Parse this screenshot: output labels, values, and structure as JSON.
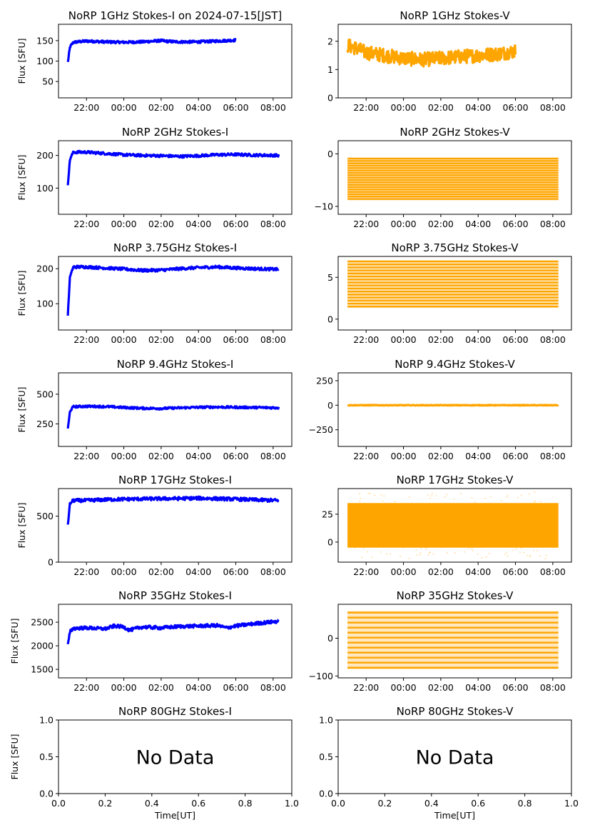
{
  "figure_title": "NoRP 1GHz Stokes-I on 2024-07-15[JST]",
  "colors": {
    "stokes_i": "#0000ff",
    "stokes_v": "#ffa500"
  },
  "chart_data": [
    {
      "type": "scatter",
      "title": "NoRP 1GHz Stokes-I on 2024-07-15[JST]",
      "ylabel": "Flux [SFU]",
      "xlabel": "",
      "xlim": [
        20.5,
        33.0
      ],
      "ylim": [
        10,
        190
      ],
      "xticks": [
        22,
        24,
        26,
        28,
        30,
        32
      ],
      "xtick_labels": [
        "22:00",
        "00:00",
        "02:00",
        "04:00",
        "06:00",
        "08:00"
      ],
      "yticks": [
        50,
        100,
        150
      ],
      "ytick_labels": [
        "50",
        "100",
        "150"
      ],
      "series": [
        {
          "name": "Stokes-I",
          "color": "#0000ff",
          "data_end": 30.0,
          "noise": 3,
          "points": [
            [
              21.0,
              97
            ],
            [
              21.12,
              135
            ],
            [
              21.3,
              146
            ],
            [
              22,
              149
            ],
            [
              23,
              147
            ],
            [
              24,
              146
            ],
            [
              25,
              147
            ],
            [
              26,
              150
            ],
            [
              26.4,
              148
            ],
            [
              27,
              147
            ],
            [
              28,
              147
            ],
            [
              29,
              149
            ],
            [
              30,
              151
            ]
          ]
        }
      ],
      "annotations": []
    },
    {
      "type": "scatter",
      "title": "NoRP 1GHz Stokes-V",
      "ylabel": "",
      "xlabel": "",
      "xlim": [
        20.5,
        33.0
      ],
      "ylim": [
        0,
        2.6
      ],
      "xticks": [
        22,
        24,
        26,
        28,
        30,
        32
      ],
      "xtick_labels": [
        "22:00",
        "00:00",
        "02:00",
        "04:00",
        "06:00",
        "08:00"
      ],
      "yticks": [
        0,
        1,
        2
      ],
      "ytick_labels": [
        "0",
        "1",
        "2"
      ],
      "series": [
        {
          "name": "Stokes-V",
          "color": "#ffa500",
          "data_end": 30.0,
          "noise": 0.25,
          "points": [
            [
              21.0,
              1.85
            ],
            [
              21.5,
              1.75
            ],
            [
              22,
              1.6
            ],
            [
              23,
              1.5
            ],
            [
              24,
              1.4
            ],
            [
              25,
              1.35
            ],
            [
              26,
              1.4
            ],
            [
              27,
              1.45
            ],
            [
              28,
              1.5
            ],
            [
              29,
              1.55
            ],
            [
              30,
              1.65
            ]
          ]
        }
      ],
      "annotations": []
    },
    {
      "type": "scatter",
      "title": "NoRP 2GHz Stokes-I",
      "ylabel": "Flux [SFU]",
      "xlabel": "",
      "xlim": [
        20.5,
        33.0
      ],
      "ylim": [
        20,
        245
      ],
      "xticks": [
        22,
        24,
        26,
        28,
        30,
        32
      ],
      "xtick_labels": [
        "22:00",
        "00:00",
        "02:00",
        "04:00",
        "06:00",
        "08:00"
      ],
      "yticks": [
        100,
        200
      ],
      "ytick_labels": [
        "100",
        "200"
      ],
      "series": [
        {
          "name": "Stokes-I",
          "color": "#0000ff",
          "data_end": 32.3,
          "noise": 4,
          "points": [
            [
              21.0,
              112
            ],
            [
              21.12,
              190
            ],
            [
              21.3,
              210
            ],
            [
              22,
              210
            ],
            [
              23,
              206
            ],
            [
              24,
              202
            ],
            [
              25,
              200
            ],
            [
              26,
              199
            ],
            [
              27,
              197
            ],
            [
              28,
              199
            ],
            [
              29,
              202
            ],
            [
              30,
              203
            ],
            [
              31,
              201
            ],
            [
              32.3,
              200
            ]
          ]
        }
      ],
      "annotations": []
    },
    {
      "type": "scatter",
      "title": "NoRP 2GHz Stokes-V",
      "ylabel": "",
      "xlabel": "",
      "xlim": [
        20.5,
        33.0
      ],
      "ylim": [
        -11.5,
        2.5
      ],
      "xticks": [
        22,
        24,
        26,
        28,
        30,
        32
      ],
      "xtick_labels": [
        "22:00",
        "00:00",
        "02:00",
        "04:00",
        "06:00",
        "08:00"
      ],
      "yticks": [
        0,
        -10
      ],
      "ytick_labels": [
        "0",
        "−10"
      ],
      "series": [
        {
          "name": "Stokes-V",
          "color": "#ffa500",
          "data_end": 32.3,
          "bands": [
            -8.6,
            -0.9
          ],
          "band_count": 18,
          "points": []
        }
      ],
      "annotations": []
    },
    {
      "type": "scatter",
      "title": "NoRP 3.75GHz Stokes-I",
      "ylabel": "Flux [SFU]",
      "xlabel": "",
      "xlim": [
        20.5,
        33.0
      ],
      "ylim": [
        25,
        235
      ],
      "xticks": [
        22,
        24,
        26,
        28,
        30,
        32
      ],
      "xtick_labels": [
        "22:00",
        "00:00",
        "02:00",
        "04:00",
        "06:00",
        "08:00"
      ],
      "yticks": [
        100,
        200
      ],
      "ytick_labels": [
        "100",
        "200"
      ],
      "series": [
        {
          "name": "Stokes-I",
          "color": "#0000ff",
          "data_end": 32.3,
          "noise": 4,
          "points": [
            [
              21.0,
              68
            ],
            [
              21.12,
              180
            ],
            [
              21.3,
              205
            ],
            [
              22,
              205
            ],
            [
              23,
              202
            ],
            [
              24,
              199
            ],
            [
              25,
              195
            ],
            [
              26,
              196
            ],
            [
              27,
              200
            ],
            [
              28,
              203
            ],
            [
              29,
              205
            ],
            [
              30,
              202
            ],
            [
              31,
              200
            ],
            [
              32.3,
              198
            ]
          ]
        }
      ],
      "annotations": []
    },
    {
      "type": "scatter",
      "title": "NoRP 3.75GHz Stokes-V",
      "ylabel": "",
      "xlabel": "",
      "xlim": [
        20.5,
        33.0
      ],
      "ylim": [
        -1.3,
        7.5
      ],
      "xticks": [
        22,
        24,
        26,
        28,
        30,
        32
      ],
      "xtick_labels": [
        "22:00",
        "00:00",
        "02:00",
        "04:00",
        "06:00",
        "08:00"
      ],
      "yticks": [
        0,
        5
      ],
      "ytick_labels": [
        "0",
        "5"
      ],
      "series": [
        {
          "name": "Stokes-V",
          "color": "#ffa500",
          "data_end": 32.3,
          "bands": [
            1.5,
            6.9
          ],
          "band_count": 16,
          "points": []
        }
      ],
      "annotations": []
    },
    {
      "type": "scatter",
      "title": "NoRP 9.4GHz Stokes-I",
      "ylabel": "Flux [SFU]",
      "xlabel": "",
      "xlim": [
        20.5,
        33.0
      ],
      "ylim": [
        60,
        680
      ],
      "xticks": [
        22,
        24,
        26,
        28,
        30,
        32
      ],
      "xtick_labels": [
        "22:00",
        "00:00",
        "02:00",
        "04:00",
        "06:00",
        "08:00"
      ],
      "yticks": [
        250,
        500
      ],
      "ytick_labels": [
        "250",
        "500"
      ],
      "series": [
        {
          "name": "Stokes-I",
          "color": "#0000ff",
          "data_end": 32.3,
          "noise": 9,
          "points": [
            [
              21.0,
              205
            ],
            [
              21.12,
              360
            ],
            [
              21.3,
              395
            ],
            [
              22,
              398
            ],
            [
              23,
              396
            ],
            [
              24,
              388
            ],
            [
              25,
              382
            ],
            [
              26,
              380
            ],
            [
              27,
              385
            ],
            [
              28,
              390
            ],
            [
              29,
              392
            ],
            [
              30,
              390
            ],
            [
              31,
              388
            ],
            [
              32.3,
              386
            ]
          ]
        }
      ],
      "annotations": []
    },
    {
      "type": "scatter",
      "title": "NoRP 9.4GHz Stokes-V",
      "ylabel": "",
      "xlabel": "",
      "xlim": [
        20.5,
        33.0
      ],
      "ylim": [
        -420,
        330
      ],
      "xticks": [
        22,
        24,
        26,
        28,
        30,
        32
      ],
      "xtick_labels": [
        "22:00",
        "00:00",
        "02:00",
        "04:00",
        "06:00",
        "08:00"
      ],
      "yticks": [
        250,
        0,
        -250
      ],
      "ytick_labels": [
        "250",
        "0",
        "−250"
      ],
      "series": [
        {
          "name": "Stokes-V",
          "color": "#ffa500",
          "data_end": 32.3,
          "noise": 3,
          "points": [
            [
              21.0,
              0
            ],
            [
              32.3,
              0
            ]
          ]
        }
      ],
      "annotations": []
    },
    {
      "type": "scatter",
      "title": "NoRP 17GHz Stokes-I",
      "ylabel": "Flux [SFU]",
      "xlabel": "",
      "xlim": [
        20.5,
        33.0
      ],
      "ylim": [
        0,
        800
      ],
      "xticks": [
        22,
        24,
        26,
        28,
        30,
        32
      ],
      "xtick_labels": [
        "22:00",
        "00:00",
        "02:00",
        "04:00",
        "06:00",
        "08:00"
      ],
      "yticks": [
        0,
        500
      ],
      "ytick_labels": [
        "0",
        "500"
      ],
      "series": [
        {
          "name": "Stokes-I",
          "color": "#0000ff",
          "data_end": 32.3,
          "noise": 18,
          "points": [
            [
              21.0,
              410
            ],
            [
              21.12,
              640
            ],
            [
              21.3,
              670
            ],
            [
              22,
              670
            ],
            [
              23,
              680
            ],
            [
              24,
              685
            ],
            [
              25,
              688
            ],
            [
              26,
              690
            ],
            [
              27,
              692
            ],
            [
              28,
              695
            ],
            [
              29,
              690
            ],
            [
              30,
              685
            ],
            [
              31,
              678
            ],
            [
              32.3,
              670
            ]
          ]
        }
      ],
      "annotations": []
    },
    {
      "type": "scatter",
      "title": "NoRP 17GHz Stokes-V",
      "ylabel": "",
      "xlabel": "",
      "xlim": [
        20.5,
        33.0
      ],
      "ylim": [
        -18,
        48
      ],
      "xticks": [
        22,
        24,
        26,
        28,
        30,
        32
      ],
      "xtick_labels": [
        "22:00",
        "00:00",
        "02:00",
        "04:00",
        "06:00",
        "08:00"
      ],
      "yticks": [
        0,
        25
      ],
      "ytick_labels": [
        "0",
        "25"
      ],
      "series": [
        {
          "name": "Stokes-V",
          "color": "#ffa500",
          "data_end": 32.3,
          "bands": [
            -5,
            35
          ],
          "band_count": 0,
          "points": []
        }
      ],
      "annotations": []
    },
    {
      "type": "scatter",
      "title": "NoRP 35GHz Stokes-I",
      "ylabel": "Flux [SFU]",
      "xlabel": "",
      "xlim": [
        20.5,
        33.0
      ],
      "ylim": [
        1320,
        2880
      ],
      "xticks": [
        22,
        24,
        26,
        28,
        30,
        32
      ],
      "xtick_labels": [
        "22:00",
        "00:00",
        "02:00",
        "04:00",
        "06:00",
        "08:00"
      ],
      "yticks": [
        1500,
        2000,
        2500
      ],
      "ytick_labels": [
        "1500",
        "2000",
        "2500"
      ],
      "series": [
        {
          "name": "Stokes-I",
          "color": "#0000ff",
          "data_end": 32.3,
          "noise": 35,
          "points": [
            [
              21.0,
              2010
            ],
            [
              21.12,
              2300
            ],
            [
              21.3,
              2370
            ],
            [
              22,
              2380
            ],
            [
              23,
              2360
            ],
            [
              23.5,
              2420
            ],
            [
              24,
              2400
            ],
            [
              24.3,
              2330
            ],
            [
              25,
              2400
            ],
            [
              26,
              2380
            ],
            [
              27,
              2410
            ],
            [
              28,
              2420
            ],
            [
              29,
              2430
            ],
            [
              29.5,
              2380
            ],
            [
              30,
              2420
            ],
            [
              31,
              2470
            ],
            [
              32.3,
              2520
            ]
          ]
        }
      ],
      "annotations": []
    },
    {
      "type": "scatter",
      "title": "NoRP 35GHz Stokes-V",
      "ylabel": "",
      "xlabel": "",
      "xlim": [
        20.5,
        33.0
      ],
      "ylim": [
        -105,
        90
      ],
      "xticks": [
        22,
        24,
        26,
        28,
        30,
        32
      ],
      "xtick_labels": [
        "22:00",
        "00:00",
        "02:00",
        "04:00",
        "06:00",
        "08:00"
      ],
      "yticks": [
        0,
        -100
      ],
      "ytick_labels": [
        "0",
        "−100"
      ],
      "series": [
        {
          "name": "Stokes-V",
          "color": "#ffa500",
          "data_end": 32.3,
          "bands": [
            -78,
            68
          ],
          "band_count": 12,
          "points": []
        }
      ],
      "annotations": []
    },
    {
      "type": "scatter",
      "title": "NoRP 80GHz Stokes-I",
      "ylabel": "Flux [SFU]",
      "xlabel": "Time[UT]",
      "xlim": [
        0,
        1
      ],
      "ylim": [
        0,
        1
      ],
      "xticks": [
        0,
        0.2,
        0.4,
        0.6,
        0.8,
        1.0
      ],
      "xtick_labels": [
        "0.0",
        "0.2",
        "0.4",
        "0.6",
        "0.8",
        "1.0"
      ],
      "yticks": [
        0,
        0.5,
        1.0
      ],
      "ytick_labels": [
        "0.0",
        "0.5",
        "1.0"
      ],
      "series": [],
      "annotations": [
        "No Data"
      ]
    },
    {
      "type": "scatter",
      "title": "NoRP 80GHz Stokes-V",
      "ylabel": "",
      "xlabel": "Time[UT]",
      "xlim": [
        0,
        1
      ],
      "ylim": [
        0,
        1
      ],
      "xticks": [
        0,
        0.2,
        0.4,
        0.6,
        0.8,
        1.0
      ],
      "xtick_labels": [
        "0.0",
        "0.2",
        "0.4",
        "0.6",
        "0.8",
        "1.0"
      ],
      "yticks": [
        0,
        0.5,
        1.0
      ],
      "ytick_labels": [
        "0.0",
        "0.5",
        "1.0"
      ],
      "series": [],
      "annotations": [
        "No Data"
      ]
    }
  ]
}
